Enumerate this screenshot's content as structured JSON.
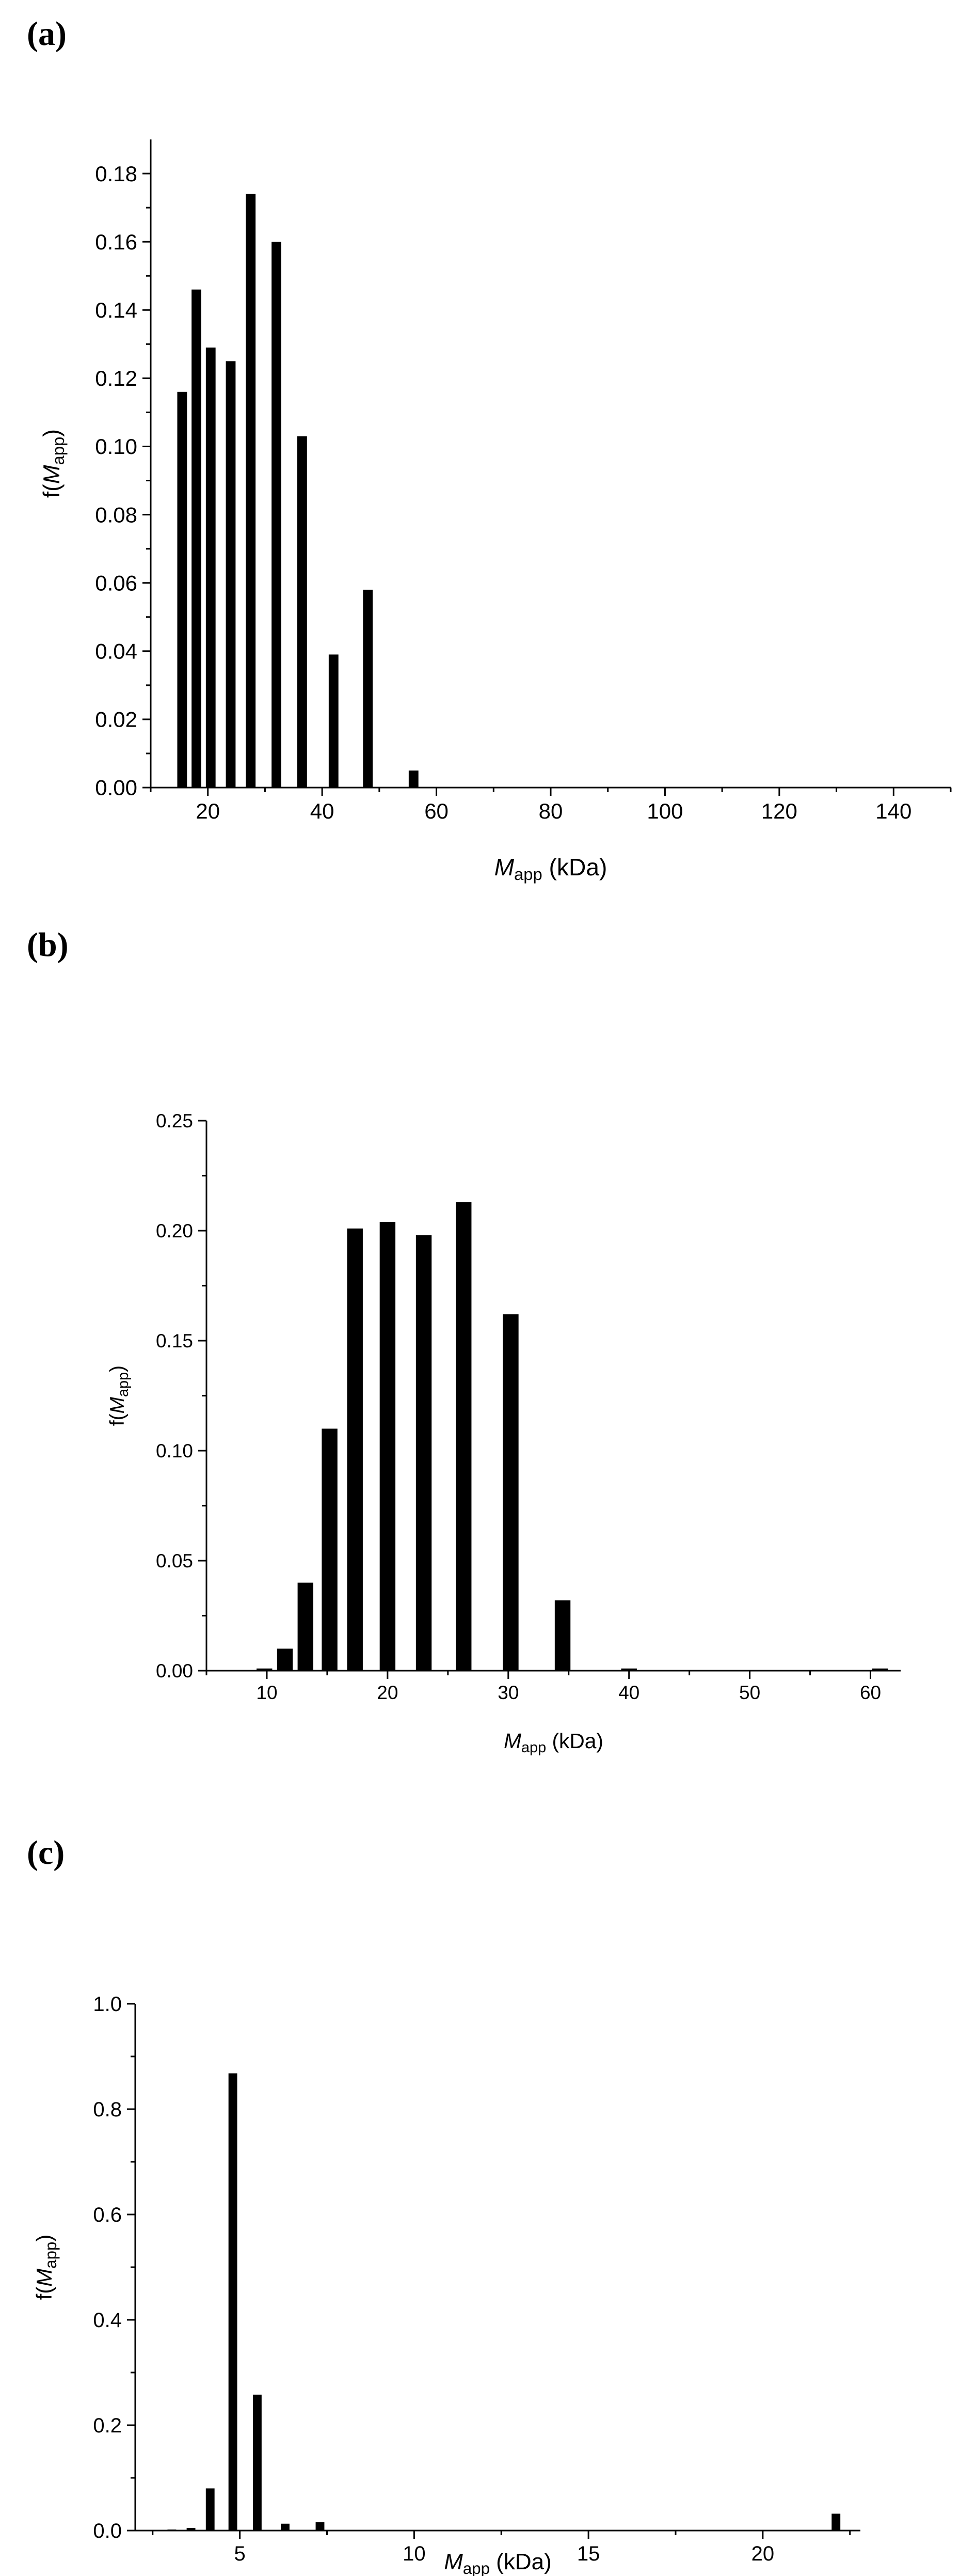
{
  "chart_data": [
    {
      "type": "bar",
      "panel_label": "(a)",
      "ylabel": "f(M_app)",
      "ylabel_base": "f(",
      "ylabel_italic": "M",
      "ylabel_sub": "app",
      "ylabel_close": ")",
      "xlabel_italic": "M",
      "xlabel_sub": "app",
      "xlabel_rest": " (kDa)",
      "xlim": [
        10,
        150
      ],
      "ylim": [
        0,
        0.19
      ],
      "xticks": [
        20,
        40,
        60,
        80,
        100,
        120,
        140
      ],
      "xtick_labels": [
        "20",
        "40",
        "60",
        "80",
        "100",
        "120",
        "140"
      ],
      "yticks": [
        0,
        0.02,
        0.04,
        0.06,
        0.08,
        0.1,
        0.12,
        0.14,
        0.16,
        0.18
      ],
      "ytick_labels": [
        "0.00",
        "0.02",
        "0.04",
        "0.06",
        "0.08",
        "0.10",
        "0.12",
        "0.14",
        "0.16",
        "0.18"
      ],
      "bar_width": 1.7,
      "points": [
        {
          "x": 15.5,
          "y": 0.116
        },
        {
          "x": 18,
          "y": 0.146
        },
        {
          "x": 20.5,
          "y": 0.129
        },
        {
          "x": 24,
          "y": 0.125
        },
        {
          "x": 27.5,
          "y": 0.174
        },
        {
          "x": 32,
          "y": 0.16
        },
        {
          "x": 36.5,
          "y": 0.103
        },
        {
          "x": 42,
          "y": 0.039
        },
        {
          "x": 48,
          "y": 0.058
        },
        {
          "x": 56,
          "y": 0.005
        }
      ]
    },
    {
      "type": "bar",
      "panel_label": "(b)",
      "ylabel_base": "f(",
      "ylabel_italic": "M",
      "ylabel_sub": "app",
      "ylabel_close": ")",
      "xlabel_italic": "M",
      "xlabel_sub": "app",
      "xlabel_rest": " (kDa)",
      "xlim": [
        5,
        62.5
      ],
      "ylim": [
        0,
        0.25
      ],
      "xticks": [
        10,
        20,
        30,
        40,
        50,
        60
      ],
      "xtick_labels": [
        "10",
        "20",
        "30",
        "40",
        "50",
        "60"
      ],
      "yticks": [
        0,
        0.05,
        0.1,
        0.15,
        0.2,
        0.25
      ],
      "ytick_labels": [
        "0.00",
        "0.05",
        "0.10",
        "0.15",
        "0.20",
        "0.25"
      ],
      "bar_width": 1.3,
      "points": [
        {
          "x": 9.8,
          "y": 0.001
        },
        {
          "x": 11.5,
          "y": 0.01
        },
        {
          "x": 13.2,
          "y": 0.04
        },
        {
          "x": 15.2,
          "y": 0.11
        },
        {
          "x": 17.3,
          "y": 0.201
        },
        {
          "x": 20,
          "y": 0.204
        },
        {
          "x": 23,
          "y": 0.198
        },
        {
          "x": 26.3,
          "y": 0.213
        },
        {
          "x": 30.2,
          "y": 0.162
        },
        {
          "x": 34.5,
          "y": 0.032
        },
        {
          "x": 40,
          "y": 0.001
        },
        {
          "x": 60.8,
          "y": 0.001
        }
      ]
    },
    {
      "type": "bar",
      "panel_label": "(c)",
      "ylabel_base": "f(",
      "ylabel_italic": "M",
      "ylabel_sub": "app",
      "ylabel_close": ")",
      "xlabel_italic": "M",
      "xlabel_sub": "app",
      "xlabel_rest": " (kDa)",
      "xlim": [
        2,
        22.8
      ],
      "ylim": [
        0,
        1.0
      ],
      "xticks": [
        5,
        10,
        15,
        20
      ],
      "xtick_labels": [
        "5",
        "10",
        "15",
        "20"
      ],
      "yticks": [
        0,
        0.2,
        0.4,
        0.6,
        0.8,
        1.0
      ],
      "ytick_labels": [
        "0.0",
        "0.2",
        "0.4",
        "0.6",
        "0.8",
        "1.0"
      ],
      "bar_width": 0.25,
      "points": [
        {
          "x": 3.05,
          "y": 0.002
        },
        {
          "x": 3.6,
          "y": 0.005
        },
        {
          "x": 4.15,
          "y": 0.08
        },
        {
          "x": 4.8,
          "y": 0.868
        },
        {
          "x": 5.5,
          "y": 0.258
        },
        {
          "x": 6.3,
          "y": 0.013
        },
        {
          "x": 7.3,
          "y": 0.016
        },
        {
          "x": 22.1,
          "y": 0.032
        }
      ]
    }
  ]
}
